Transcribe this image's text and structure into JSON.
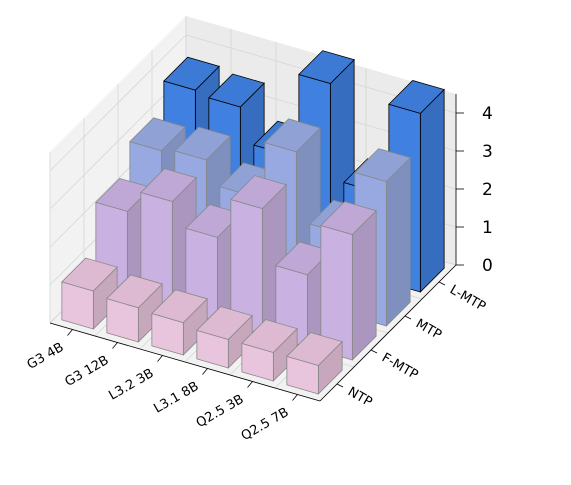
{
  "chart_data": {
    "type": "bar3d",
    "categories": [
      "G3 4B",
      "G3 12B",
      "L3.2 3B",
      "L3.1 8B",
      "Q2.5 3B",
      "Q2.5 7B"
    ],
    "series": [
      {
        "name": "NTP",
        "color": "#e9c4dd",
        "values": [
          1.0,
          0.9,
          0.85,
          0.75,
          0.75,
          0.75
        ]
      },
      {
        "name": "F-MTP",
        "color": "#c9b1e1",
        "values": [
          2.2,
          2.8,
          2.2,
          3.3,
          1.9,
          3.3
        ]
      },
      {
        "name": "MTP",
        "color": "#97a9e0",
        "values": [
          2.9,
          3.0,
          2.4,
          3.9,
          2.1,
          3.8
        ]
      },
      {
        "name": "L-MTP",
        "color": "#3f80e0",
        "values": [
          3.6,
          3.5,
          2.6,
          4.8,
          2.3,
          4.7
        ]
      }
    ],
    "zlim": [
      0,
      4.5
    ],
    "zticks": [
      0,
      1,
      2,
      3,
      4
    ],
    "grid": true
  }
}
